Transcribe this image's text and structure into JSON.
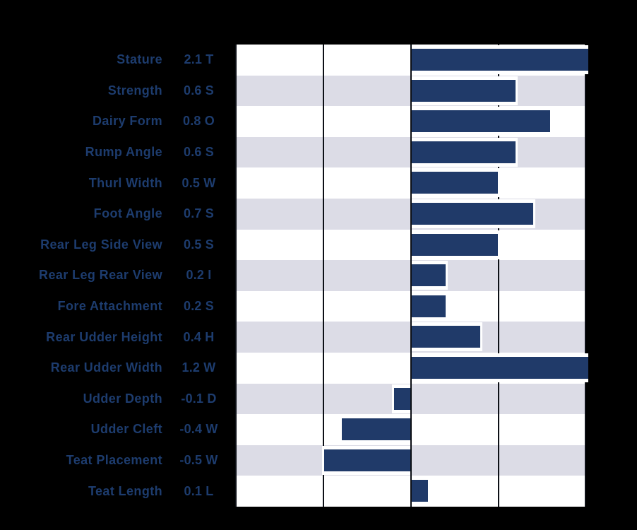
{
  "colors": {
    "background": "#000000",
    "bar_fill": "#203a69",
    "bar_outline": "#ffffff",
    "stripe_odd": "#ffffff",
    "stripe_even": "#dcdce6",
    "gridline": "#0d1016",
    "label_text": "#1d3c6e"
  },
  "chart_data": {
    "type": "bar",
    "orientation": "horizontal",
    "title": "",
    "xlabel": "",
    "ylabel": "",
    "xlim": [
      -1,
      1
    ],
    "gridline_interval": 0.5,
    "grid": "vertical-lines-only",
    "bars_clipped_at_xlim": true,
    "row_stripes": true,
    "legend": "none",
    "categories": [
      "Stature",
      "Strength",
      "Dairy Form",
      "Rump Angle",
      "Thurl Width",
      "Foot Angle",
      "Rear Leg Side View",
      "Rear Leg Rear View",
      "Fore Attachment",
      "Rear Udder Height",
      "Rear Udder Width",
      "Udder Depth",
      "Udder Cleft",
      "Teat Placement",
      "Teat Length"
    ],
    "values": [
      2.1,
      0.6,
      0.8,
      0.6,
      0.5,
      0.7,
      0.5,
      0.2,
      0.2,
      0.4,
      1.2,
      -0.1,
      -0.4,
      -0.5,
      0.1
    ],
    "rows": [
      {
        "label": "Stature",
        "value": 2.1,
        "value_label": "2.1 T"
      },
      {
        "label": "Strength",
        "value": 0.6,
        "value_label": "0.6 S"
      },
      {
        "label": "Dairy Form",
        "value": 0.8,
        "value_label": "0.8 O"
      },
      {
        "label": "Rump Angle",
        "value": 0.6,
        "value_label": "0.6 S"
      },
      {
        "label": "Thurl Width",
        "value": 0.5,
        "value_label": "0.5 W"
      },
      {
        "label": "Foot Angle",
        "value": 0.7,
        "value_label": "0.7 S"
      },
      {
        "label": "Rear Leg Side View",
        "value": 0.5,
        "value_label": "0.5 S"
      },
      {
        "label": "Rear Leg Rear View",
        "value": 0.2,
        "value_label": "0.2 I"
      },
      {
        "label": "Fore Attachment",
        "value": 0.2,
        "value_label": "0.2 S"
      },
      {
        "label": "Rear Udder Height",
        "value": 0.4,
        "value_label": "0.4 H"
      },
      {
        "label": "Rear Udder Width",
        "value": 1.2,
        "value_label": "1.2 W"
      },
      {
        "label": "Udder Depth",
        "value": -0.1,
        "value_label": "-0.1 D"
      },
      {
        "label": "Udder Cleft",
        "value": -0.4,
        "value_label": "-0.4 W"
      },
      {
        "label": "Teat Placement",
        "value": -0.5,
        "value_label": "-0.5 W"
      },
      {
        "label": "Teat Length",
        "value": 0.1,
        "value_label": "0.1 L"
      }
    ]
  }
}
